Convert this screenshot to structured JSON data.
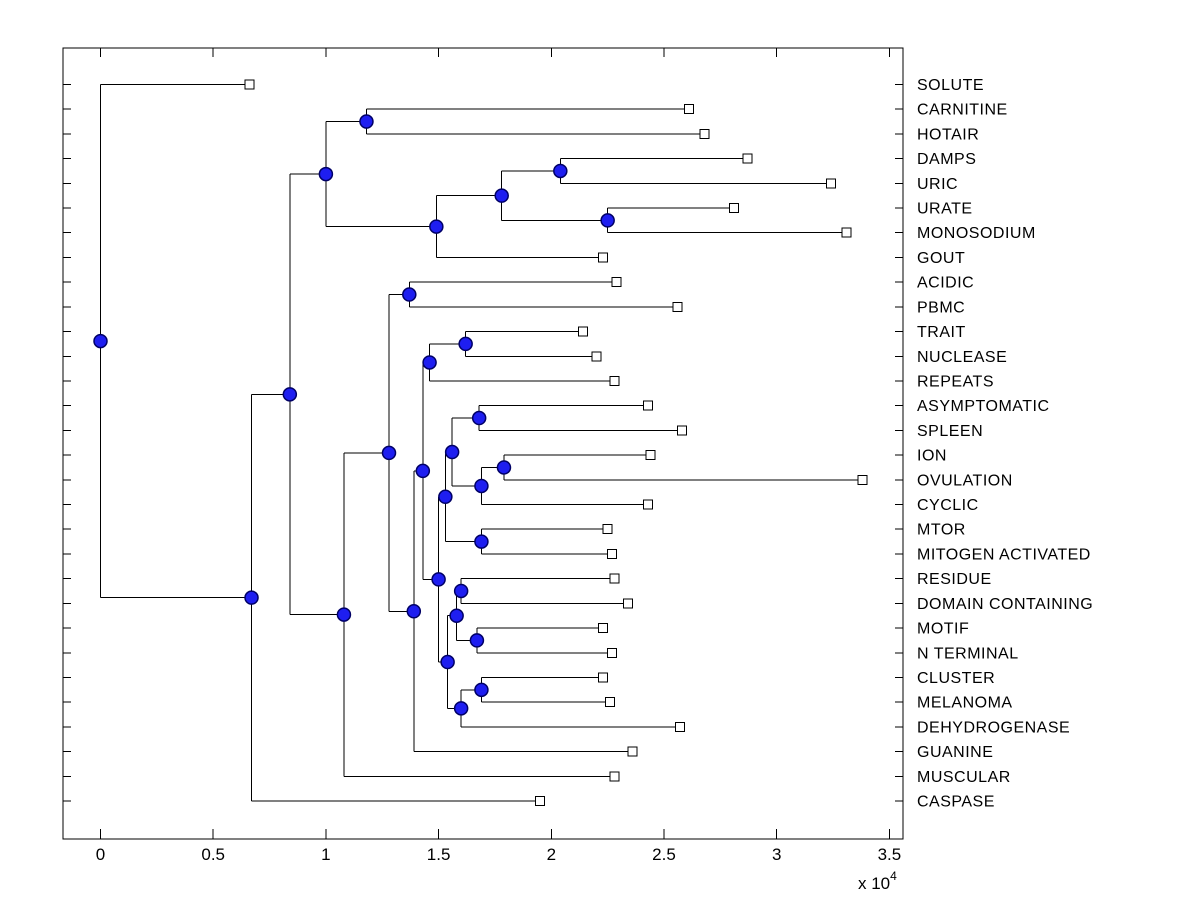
{
  "figure": {
    "background": "#ffffff",
    "box_color": "#000000",
    "branch_color": "#000000",
    "text_color": "#000000",
    "node_marker": {
      "fill": "#1e1ef0",
      "stroke": "#000066"
    },
    "leaf_marker": {
      "fill": "#ffffff",
      "stroke": "#000000"
    }
  },
  "chart_data": {
    "type": "dendrogram",
    "orientation": "left-to-right",
    "title": "",
    "x_axis": {
      "range": [
        0,
        3.5
      ],
      "ticks": [
        0,
        0.5,
        1,
        1.5,
        2,
        2.5,
        3,
        3.5
      ],
      "tick_labels": [
        "0",
        "0.5",
        "1",
        "1.5",
        "2",
        "2.5",
        "3",
        "3.5"
      ],
      "exponent_label": {
        "base": "x 10",
        "exponent": "4"
      },
      "unit_multiplier": 10000
    },
    "leaf_labels": [
      "SOLUTE",
      "CARNITINE",
      "HOTAIR",
      "DAMPS",
      "URIC",
      "URATE",
      "MONOSODIUM",
      "GOUT",
      "ACIDIC",
      "PBMC",
      "TRAIT",
      "NUCLEASE",
      "REPEATS",
      "ASYMPTOMATIC",
      "SPLEEN",
      "ION",
      "OVULATION",
      "CYCLIC",
      "MTOR",
      "MITOGEN ACTIVATED",
      "RESIDUE",
      "DOMAIN CONTAINING",
      "MOTIF",
      "N TERMINAL",
      "CLUSTER",
      "MELANOMA",
      "DEHYDROGENASE",
      "GUANINE",
      "MUSCULAR",
      "CASPASE"
    ],
    "tree": {
      "x": 0.0,
      "children": [
        {
          "name": "SOLUTE",
          "x": 0.66
        },
        {
          "x": 0.67,
          "children": [
            {
              "x": 0.84,
              "children": [
                {
                  "x": 1.0,
                  "children": [
                    {
                      "x": 1.18,
                      "children": [
                        {
                          "name": "CARNITINE",
                          "x": 2.61
                        },
                        {
                          "name": "HOTAIR",
                          "x": 2.68
                        }
                      ]
                    },
                    {
                      "x": 1.49,
                      "children": [
                        {
                          "x": 1.78,
                          "children": [
                            {
                              "x": 2.04,
                              "children": [
                                {
                                  "name": "DAMPS",
                                  "x": 2.87
                                },
                                {
                                  "name": "URIC",
                                  "x": 3.24
                                }
                              ]
                            },
                            {
                              "x": 2.25,
                              "children": [
                                {
                                  "name": "URATE",
                                  "x": 2.81
                                },
                                {
                                  "name": "MONOSODIUM",
                                  "x": 3.31
                                }
                              ]
                            }
                          ]
                        },
                        {
                          "name": "GOUT",
                          "x": 2.23
                        }
                      ]
                    }
                  ]
                },
                {
                  "x": 1.08,
                  "children": [
                    {
                      "x": 1.28,
                      "children": [
                        {
                          "x": 1.37,
                          "children": [
                            {
                              "name": "ACIDIC",
                              "x": 2.29
                            },
                            {
                              "name": "PBMC",
                              "x": 2.56
                            }
                          ]
                        },
                        {
                          "x": 1.39,
                          "children": [
                            {
                              "x": 1.43,
                              "children": [
                                {
                                  "x": 1.46,
                                  "children": [
                                    {
                                      "x": 1.62,
                                      "children": [
                                        {
                                          "name": "TRAIT",
                                          "x": 2.14
                                        },
                                        {
                                          "name": "NUCLEASE",
                                          "x": 2.2
                                        }
                                      ]
                                    },
                                    {
                                      "name": "REPEATS",
                                      "x": 2.28
                                    }
                                  ]
                                },
                                {
                                  "x": 1.5,
                                  "children": [
                                    {
                                      "x": 1.53,
                                      "children": [
                                        {
                                          "x": 1.56,
                                          "children": [
                                            {
                                              "x": 1.68,
                                              "children": [
                                                {
                                                  "name": "ASYMPTOMATIC",
                                                  "x": 2.43
                                                },
                                                {
                                                  "name": "SPLEEN",
                                                  "x": 2.58
                                                }
                                              ]
                                            },
                                            {
                                              "x": 1.69,
                                              "children": [
                                                {
                                                  "x": 1.79,
                                                  "children": [
                                                    {
                                                      "name": "ION",
                                                      "x": 2.44
                                                    },
                                                    {
                                                      "name": "OVULATION",
                                                      "x": 3.38
                                                    }
                                                  ]
                                                },
                                                {
                                                  "name": "CYCLIC",
                                                  "x": 2.43
                                                }
                                              ]
                                            }
                                          ]
                                        },
                                        {
                                          "x": 1.69,
                                          "children": [
                                            {
                                              "name": "MTOR",
                                              "x": 2.25
                                            },
                                            {
                                              "name": "MITOGEN ACTIVATED",
                                              "x": 2.27
                                            }
                                          ]
                                        }
                                      ]
                                    },
                                    {
                                      "x": 1.54,
                                      "children": [
                                        {
                                          "x": 1.58,
                                          "children": [
                                            {
                                              "x": 1.6,
                                              "children": [
                                                {
                                                  "name": "RESIDUE",
                                                  "x": 2.28
                                                },
                                                {
                                                  "name": "DOMAIN CONTAINING",
                                                  "x": 2.34
                                                }
                                              ]
                                            },
                                            {
                                              "x": 1.67,
                                              "children": [
                                                {
                                                  "name": "MOTIF",
                                                  "x": 2.23
                                                },
                                                {
                                                  "name": "N TERMINAL",
                                                  "x": 2.27
                                                }
                                              ]
                                            }
                                          ]
                                        },
                                        {
                                          "x": 1.6,
                                          "children": [
                                            {
                                              "x": 1.69,
                                              "children": [
                                                {
                                                  "name": "CLUSTER",
                                                  "x": 2.23
                                                },
                                                {
                                                  "name": "MELANOMA",
                                                  "x": 2.26
                                                }
                                              ]
                                            },
                                            {
                                              "name": "DEHYDROGENASE",
                                              "x": 2.57
                                            }
                                          ]
                                        }
                                      ]
                                    }
                                  ]
                                }
                              ]
                            },
                            {
                              "name": "GUANINE",
                              "x": 2.36
                            }
                          ]
                        }
                      ]
                    },
                    {
                      "name": "MUSCULAR",
                      "x": 2.28
                    }
                  ]
                }
              ]
            },
            {
              "name": "CASPASE",
              "x": 1.95
            }
          ]
        }
      ]
    }
  }
}
